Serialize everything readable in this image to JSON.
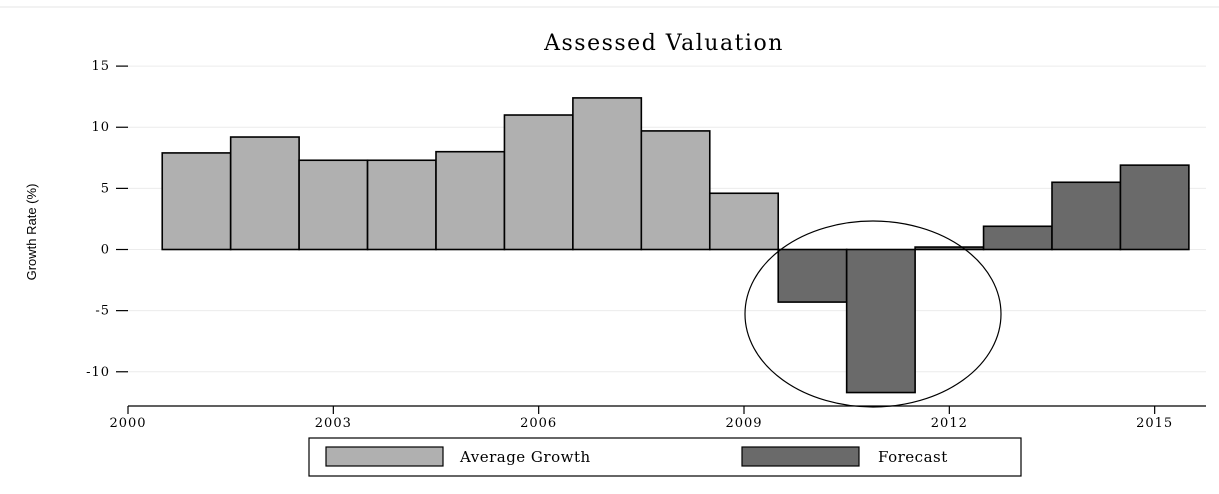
{
  "chart_data": {
    "type": "bar",
    "title": "Assessed Valuation",
    "xlabel": "",
    "ylabel": "Growth Rate (%)",
    "xlim": [
      2000,
      2015.75
    ],
    "ylim": [
      -12.8,
      15.5
    ],
    "x_ticks": [
      "2000",
      "2003",
      "2006",
      "2009",
      "2012",
      "2015"
    ],
    "y_ticks": [
      "15",
      "10",
      "5",
      "0",
      "-5",
      "-10"
    ],
    "grid": "horizontal",
    "legend_position": "bottom",
    "series": [
      {
        "name": "Average Growth",
        "color": "#b0b0b0",
        "x": [
          2001,
          2002,
          2003,
          2004,
          2005,
          2006,
          2007,
          2008,
          2009
        ],
        "values": [
          7.9,
          9.2,
          7.3,
          7.3,
          8.0,
          11.0,
          12.4,
          9.7,
          4.6
        ]
      },
      {
        "name": "Forecast",
        "color": "#6a6a6a",
        "x": [
          2010,
          2011,
          2012,
          2013,
          2014,
          2015
        ],
        "values": [
          -4.3,
          -11.7,
          0.2,
          1.9,
          5.5,
          6.9
        ]
      }
    ],
    "annotations": [
      {
        "type": "ellipse",
        "note": "circled forecast dip"
      }
    ]
  }
}
